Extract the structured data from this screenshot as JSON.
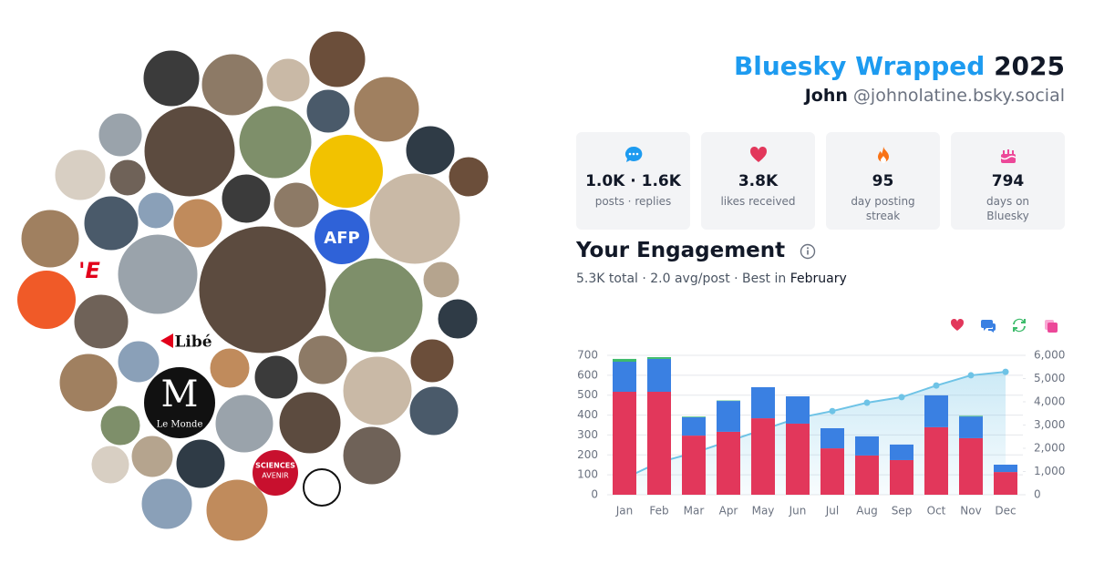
{
  "header": {
    "title": "Bluesky Wrapped",
    "year": "2025",
    "name": "John",
    "handle": "@johnolatine.bsky.social"
  },
  "stats": [
    {
      "value": "1.0K · 1.6K",
      "label": "posts · replies"
    },
    {
      "value": "3.8K",
      "label": "likes received"
    },
    {
      "value": "95",
      "label": "day posting streak"
    },
    {
      "value": "794",
      "label": "days on Bluesky"
    }
  ],
  "engagement": {
    "title": "Your Engagement",
    "summary": "5.3K total · 2.0 avg/post · Best in",
    "best_month": "February"
  },
  "avatars": {
    "afp": "AFP",
    "libe": "Libé",
    "lemonde_m": "M",
    "lemonde": "Le Monde",
    "sciences": "SCIENCES",
    "avenir": "AVENIR",
    "fragment": "'E"
  },
  "chart_data": {
    "type": "bar",
    "categories": [
      "Jan",
      "Feb",
      "Mar",
      "Apr",
      "May",
      "Jun",
      "Jul",
      "Aug",
      "Sep",
      "Oct",
      "Nov",
      "Dec"
    ],
    "series": [
      {
        "color": "#e2375b",
        "values": [
          517,
          517,
          297,
          316,
          384,
          357,
          233,
          197,
          174,
          339,
          284,
          114
        ]
      },
      {
        "color": "#3a80e2",
        "values": [
          151,
          165,
          92,
          155,
          156,
          137,
          101,
          96,
          78,
          160,
          109,
          37
        ]
      },
      {
        "color": "#3dbb6b",
        "values": [
          14,
          9,
          3,
          2,
          0,
          0,
          0,
          0,
          0,
          0,
          3,
          0
        ]
      },
      {
        "type": "line",
        "axis": "y2",
        "color": "#6ec3e6",
        "values": [
          700,
          1400,
          1800,
          2300,
          2800,
          3300,
          3600,
          3960,
          4200,
          4700,
          5140,
          5290
        ]
      }
    ],
    "ylim": [
      0,
      700
    ],
    "yticks": [
      0,
      100,
      200,
      300,
      400,
      500,
      600,
      700
    ],
    "y2lim": [
      0,
      6000
    ],
    "y2ticks": [
      0,
      {
        "value": 1000,
        "label": "1,000"
      },
      {
        "value": 2000,
        "label": "2,000"
      },
      {
        "value": 3000,
        "label": "3,000"
      },
      {
        "value": 4000,
        "label": "4,000"
      },
      {
        "value": 5000,
        "label": "5,000"
      },
      {
        "value": 6000,
        "label": "6,000"
      }
    ],
    "grid": true
  }
}
